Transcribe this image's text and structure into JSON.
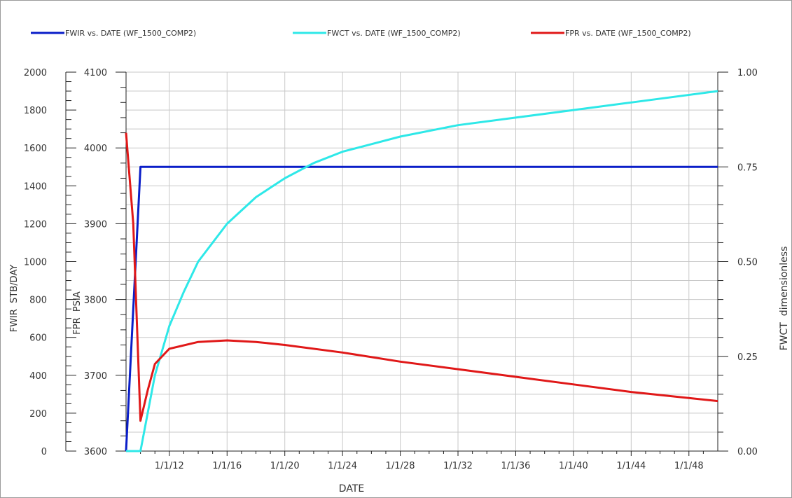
{
  "chart_data": {
    "type": "line",
    "xlabel": "DATE",
    "x_tick_labels": [
      "1/1/12",
      "1/1/16",
      "1/1/20",
      "1/1/24",
      "1/1/28",
      "1/1/32",
      "1/1/36",
      "1/1/40",
      "1/1/44",
      "1/1/48"
    ],
    "x_tick_years": [
      2012,
      2016,
      2020,
      2024,
      2028,
      2032,
      2036,
      2040,
      2044,
      2048
    ],
    "xlim": [
      2009,
      2050
    ],
    "axes": {
      "fwir": {
        "label": "FWIR  STB/DAY",
        "ylim": [
          0,
          2000
        ],
        "ticks": [
          "0",
          "200",
          "400",
          "600",
          "800",
          "1000",
          "1200",
          "1400",
          "1600",
          "1800",
          "2000"
        ],
        "tick_values": [
          0,
          200,
          400,
          600,
          800,
          1000,
          1200,
          1400,
          1600,
          1800,
          2000
        ]
      },
      "fpr": {
        "label": "FPR  PSIA",
        "ylim": [
          3600,
          4100
        ],
        "ticks": [
          "3600",
          "3700",
          "3800",
          "3900",
          "4000",
          "4100"
        ],
        "tick_values": [
          3600,
          3700,
          3800,
          3900,
          4000,
          4100
        ]
      },
      "fwct": {
        "label": "FWCT  dimensionless",
        "ylim": [
          0,
          1
        ],
        "ticks": [
          "0.00",
          "0.25",
          "0.50",
          "0.75",
          "1.00"
        ],
        "tick_values": [
          0,
          0.25,
          0.5,
          0.75,
          1.0
        ]
      }
    },
    "grid": true,
    "legend_position": "top",
    "series": [
      {
        "name": "FWIR vs. DATE (WF_1500_COMP2)",
        "axis": "fwir",
        "color": "#0a1ec8",
        "points": [
          [
            2009,
            0
          ],
          [
            2010,
            1500
          ],
          [
            2050,
            1500
          ]
        ]
      },
      {
        "name": "FWCT vs. DATE (WF_1500_COMP2)",
        "axis": "fwct",
        "color": "#2ee8e8",
        "points": [
          [
            2009,
            0
          ],
          [
            2010,
            0
          ],
          [
            2010.5,
            0.1
          ],
          [
            2011,
            0.2
          ],
          [
            2012,
            0.33
          ],
          [
            2013,
            0.42
          ],
          [
            2014,
            0.5
          ],
          [
            2016,
            0.6
          ],
          [
            2018,
            0.67
          ],
          [
            2020,
            0.72
          ],
          [
            2022,
            0.76
          ],
          [
            2024,
            0.79
          ],
          [
            2026,
            0.81
          ],
          [
            2028,
            0.83
          ],
          [
            2032,
            0.86
          ],
          [
            2036,
            0.88
          ],
          [
            2040,
            0.9
          ],
          [
            2044,
            0.92
          ],
          [
            2050,
            0.95
          ]
        ]
      },
      {
        "name": "FPR vs. DATE (WF_1500_COMP2)",
        "axis": "fpr",
        "color": "#e01818",
        "points": [
          [
            2009,
            4020
          ],
          [
            2009.5,
            3900
          ],
          [
            2010,
            3640
          ],
          [
            2010.5,
            3680
          ],
          [
            2011,
            3715
          ],
          [
            2012,
            3735
          ],
          [
            2014,
            3744
          ],
          [
            2016,
            3746
          ],
          [
            2018,
            3744
          ],
          [
            2020,
            3740
          ],
          [
            2024,
            3730
          ],
          [
            2028,
            3718
          ],
          [
            2032,
            3708
          ],
          [
            2036,
            3698
          ],
          [
            2040,
            3688
          ],
          [
            2044,
            3678
          ],
          [
            2050,
            3666
          ]
        ]
      }
    ]
  }
}
